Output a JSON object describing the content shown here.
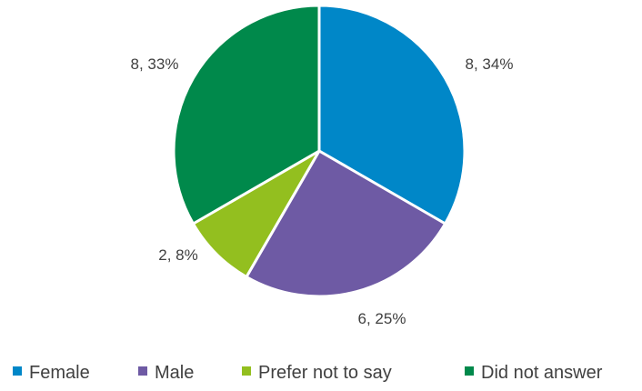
{
  "chart_data": {
    "type": "pie",
    "title": "",
    "categories": [
      "Female",
      "Male",
      "Prefer not to say",
      "Did not answer"
    ],
    "values": [
      8,
      6,
      2,
      8
    ],
    "percent_labels": [
      "34%",
      "25%",
      "8%",
      "33%"
    ],
    "data_labels": [
      "8, 34%",
      "6, 25%",
      "2, 8%",
      "8, 33%"
    ],
    "colors": [
      "#0087c8",
      "#6e5aa4",
      "#93bf1f",
      "#00894b"
    ],
    "start_angle_deg": 0,
    "direction": "clockwise",
    "legend": {
      "position": "bottom",
      "entries": [
        "Female",
        "Male",
        "Prefer not to say",
        "Did not answer"
      ]
    }
  }
}
